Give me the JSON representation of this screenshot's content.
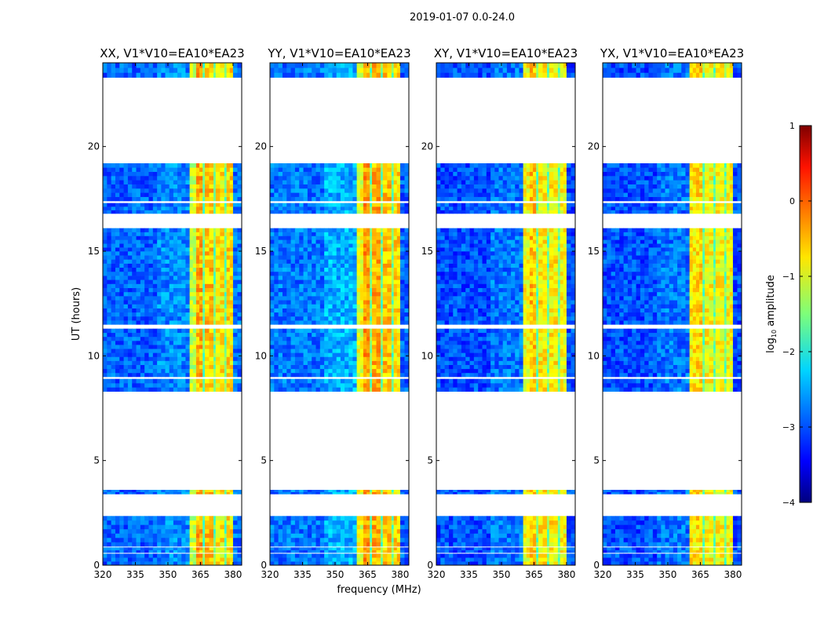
{
  "chart_data": {
    "type": "heatmap",
    "title": "2019-01-07 0.0-24.0",
    "xlabel": "frequency (MHz)",
    "ylabel": "UT (hours)",
    "xlim": [
      320,
      384
    ],
    "ylim": [
      0,
      24
    ],
    "xticks": [
      "320",
      "335",
      "350",
      "365",
      "380"
    ],
    "xtick_values": [
      320,
      335,
      350,
      365,
      380
    ],
    "yticks": [
      "0",
      "5",
      "10",
      "15",
      "20"
    ],
    "ytick_values": [
      0,
      5,
      10,
      15,
      20
    ],
    "colorbar": {
      "label_prefix": "log",
      "label_sub": "10",
      "label_suffix": " amplitude",
      "range": [
        -4,
        1
      ],
      "ticks": [
        "−4",
        "−3",
        "−2",
        "−1",
        "0",
        "1"
      ],
      "tick_values": [
        -4,
        -3,
        -2,
        -1,
        0,
        1
      ],
      "colormap": "jet"
    },
    "time_segments_hours": [
      [
        0.0,
        0.55
      ],
      [
        0.6,
        0.85
      ],
      [
        0.9,
        2.35
      ],
      [
        3.4,
        3.6
      ],
      [
        8.3,
        8.9
      ],
      [
        9.0,
        11.3
      ],
      [
        11.5,
        15.0
      ],
      [
        15.0,
        16.1
      ],
      [
        16.8,
        17.3
      ],
      [
        17.4,
        19.2
      ],
      [
        23.3,
        24.0
      ]
    ],
    "panels": [
      {
        "title": "XX, V1*V10=EA10*EA23",
        "bands": [
          [
            320,
            345,
            -2.9
          ],
          [
            345,
            360,
            -2.7
          ],
          [
            360,
            363,
            -1.2
          ],
          [
            363,
            366,
            -0.5
          ],
          [
            366,
            367,
            -1.6
          ],
          [
            367,
            371,
            -0.6
          ],
          [
            371,
            372,
            -1.6
          ],
          [
            372,
            376,
            -0.8
          ],
          [
            376,
            377,
            -1.6
          ],
          [
            377,
            380,
            -0.7
          ],
          [
            380,
            384,
            -2.8
          ]
        ]
      },
      {
        "title": "YY, V1*V10=EA10*EA23",
        "bands": [
          [
            320,
            345,
            -2.8
          ],
          [
            345,
            360,
            -2.5
          ],
          [
            360,
            363,
            -1.0
          ],
          [
            363,
            366,
            -0.4
          ],
          [
            366,
            367,
            -1.6
          ],
          [
            367,
            371,
            -0.5
          ],
          [
            371,
            372,
            -1.6
          ],
          [
            372,
            376,
            -0.6
          ],
          [
            376,
            377,
            -1.6
          ],
          [
            377,
            380,
            -0.7
          ],
          [
            380,
            384,
            -2.9
          ]
        ]
      },
      {
        "title": "XY, V1*V10=EA10*EA23",
        "bands": [
          [
            320,
            345,
            -3.0
          ],
          [
            345,
            360,
            -2.8
          ],
          [
            360,
            363,
            -0.9
          ],
          [
            363,
            366,
            -0.6
          ],
          [
            366,
            367,
            -1.6
          ],
          [
            367,
            371,
            -0.8
          ],
          [
            371,
            372,
            -1.6
          ],
          [
            372,
            376,
            -0.8
          ],
          [
            376,
            377,
            -1.6
          ],
          [
            377,
            380,
            -0.9
          ],
          [
            380,
            384,
            -3.0
          ]
        ]
      },
      {
        "title": "YX, V1*V10=EA10*EA23",
        "bands": [
          [
            320,
            345,
            -3.0
          ],
          [
            345,
            360,
            -2.8
          ],
          [
            360,
            363,
            -0.8
          ],
          [
            363,
            366,
            -0.7
          ],
          [
            366,
            367,
            -1.6
          ],
          [
            367,
            371,
            -0.9
          ],
          [
            371,
            372,
            -1.6
          ],
          [
            372,
            376,
            -0.9
          ],
          [
            376,
            377,
            -1.6
          ],
          [
            377,
            380,
            -0.9
          ],
          [
            380,
            384,
            -3.0
          ]
        ]
      }
    ]
  }
}
